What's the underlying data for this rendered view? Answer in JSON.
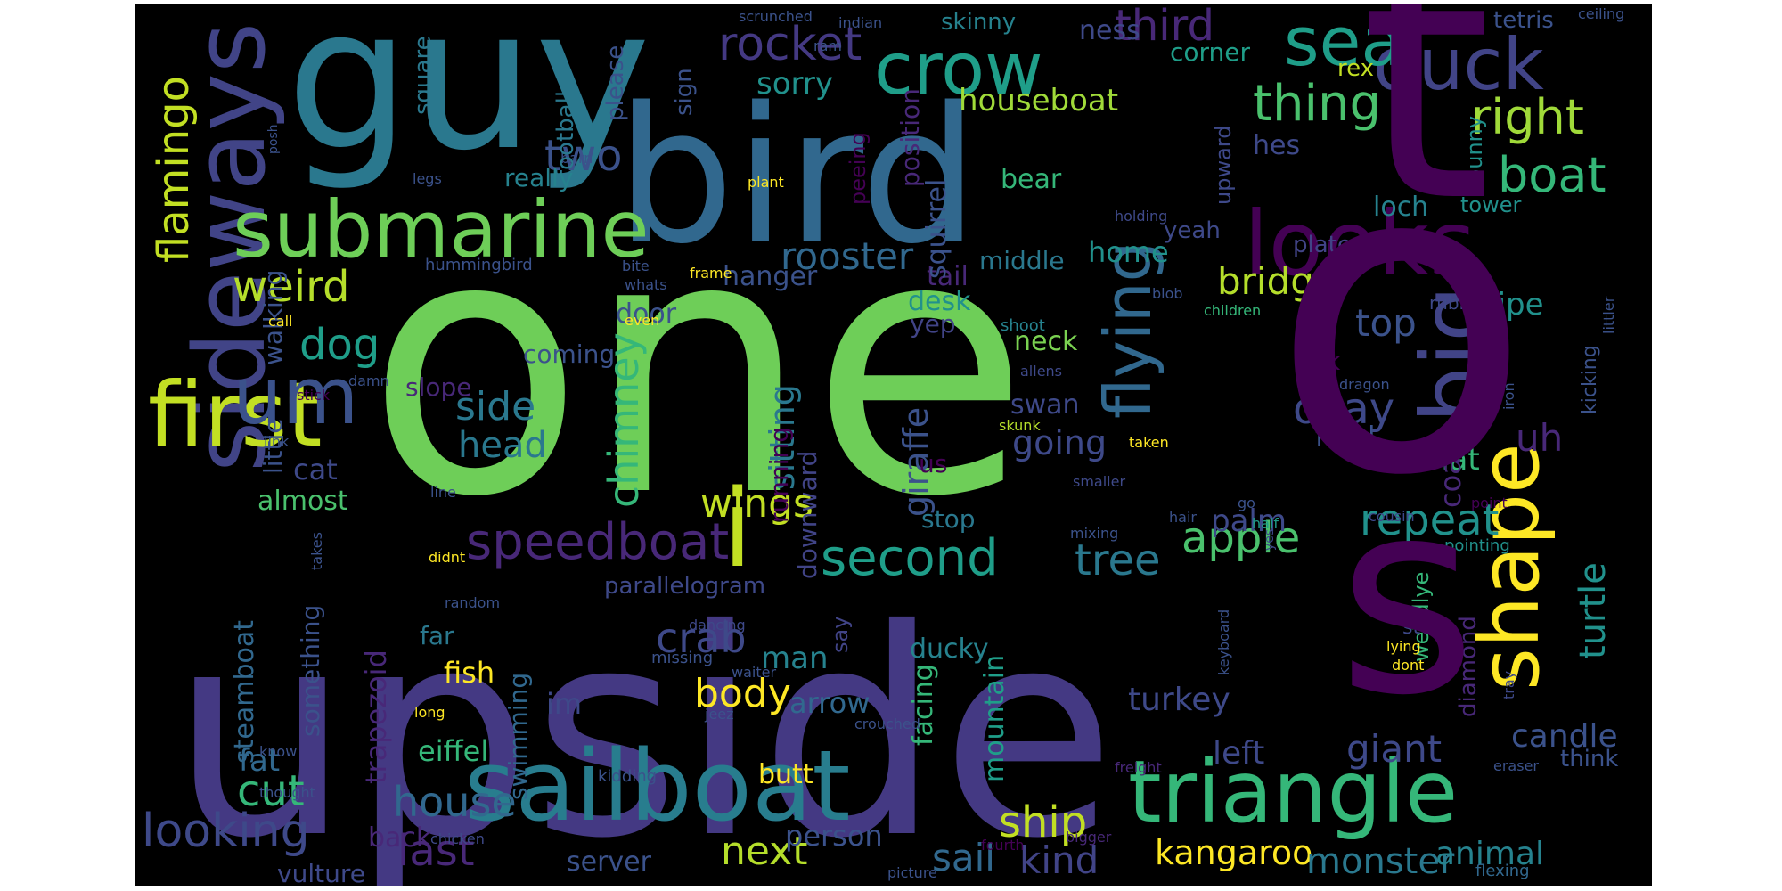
{
  "palette": {
    "background": "#000000",
    "page": "#ffffff",
    "yellow": "#fde725",
    "yellow_green": "#b5de2b",
    "light_green": "#6ece58",
    "green": "#35b779",
    "teal_green": "#1f9e89",
    "teal": "#26828e",
    "blue": "#31688e",
    "indigo": "#3e4989",
    "purple": "#482878",
    "dark_purple": "#440154"
  },
  "words": [
    {
      "text": "one",
      "color": "#6ece58"
    },
    {
      "text": "upside",
      "color": "#443983"
    },
    {
      "text": "guy",
      "color": "#2a788e"
    },
    {
      "text": "bird",
      "color": "#31688e"
    },
    {
      "text": "sideways",
      "color": "#414487"
    },
    {
      "text": "submarine",
      "color": "#6ece58"
    },
    {
      "text": "first",
      "color": "#c2df23"
    },
    {
      "text": "sailboat",
      "color": "#287d8e"
    },
    {
      "text": "triangle",
      "color": "#35b779"
    },
    {
      "text": "looks",
      "color": "#440154"
    },
    {
      "text": "crow",
      "color": "#1f9e89"
    },
    {
      "text": "duck",
      "color": "#414487"
    },
    {
      "text": "seal",
      "color": "#1f9e89"
    },
    {
      "text": "flying",
      "color": "#31688e"
    },
    {
      "text": "big",
      "color": "#414487"
    },
    {
      "text": "shape",
      "color": "#fde725"
    },
    {
      "text": "um",
      "color": "#3b528b"
    },
    {
      "text": "speedboat",
      "color": "#482878"
    },
    {
      "text": "second",
      "color": "#1f9e89"
    },
    {
      "text": "thing",
      "color": "#4ac16d"
    },
    {
      "text": "right",
      "color": "#a0da39"
    },
    {
      "text": "boat",
      "color": "#35b779"
    },
    {
      "text": "rocket",
      "color": "#443983"
    },
    {
      "text": "third",
      "color": "#482878"
    },
    {
      "text": "flamingo",
      "color": "#c2df23"
    },
    {
      "text": "two",
      "color": "#3b528b"
    },
    {
      "text": "weird",
      "color": "#b5de2b"
    },
    {
      "text": "dog",
      "color": "#1f9e89"
    },
    {
      "text": "rooster",
      "color": "#31688e"
    },
    {
      "text": "bridge",
      "color": "#b5de2b"
    },
    {
      "text": "okay",
      "color": "#3e4989"
    },
    {
      "text": "apple",
      "color": "#4ac16d"
    },
    {
      "text": "repeat",
      "color": "#21918c"
    },
    {
      "text": "tree",
      "color": "#2a788e"
    },
    {
      "text": "chimney",
      "color": "#35b779"
    },
    {
      "text": "wings",
      "color": "#c2df23"
    },
    {
      "text": "side",
      "color": "#2a788e"
    },
    {
      "text": "head",
      "color": "#2a788e"
    },
    {
      "text": "crab",
      "color": "#3e4989"
    },
    {
      "text": "cut",
      "color": "#35b779"
    },
    {
      "text": "house",
      "color": "#31688e"
    },
    {
      "text": "ship",
      "color": "#c2df23"
    },
    {
      "text": "last",
      "color": "#482878"
    },
    {
      "text": "looking",
      "color": "#3e4989"
    },
    {
      "text": "body",
      "color": "#fde725"
    },
    {
      "text": "next",
      "color": "#b5de2b"
    },
    {
      "text": "kangaroo",
      "color": "#fde725"
    },
    {
      "text": "monster",
      "color": "#2a788e"
    },
    {
      "text": "sail",
      "color": "#31688e"
    },
    {
      "text": "kind",
      "color": "#414487"
    },
    {
      "text": "animal",
      "color": "#26828e"
    },
    {
      "text": "turkey",
      "color": "#3e4989"
    },
    {
      "text": "giant",
      "color": "#3e4989"
    },
    {
      "text": "left",
      "color": "#3e4989"
    },
    {
      "text": "turtle",
      "color": "#21918c"
    },
    {
      "text": "candle",
      "color": "#3b528b"
    },
    {
      "text": "top",
      "color": "#3b528b"
    },
    {
      "text": "pipe",
      "color": "#21918c"
    },
    {
      "text": "uh",
      "color": "#482878"
    },
    {
      "text": "hat",
      "color": "#35b779"
    },
    {
      "text": "coat",
      "color": "#482878"
    },
    {
      "text": "fetal",
      "color": "#3b528b"
    },
    {
      "text": "ok",
      "color": "#440154"
    },
    {
      "text": "palm",
      "color": "#3e4989"
    },
    {
      "text": "going",
      "color": "#3e4989"
    },
    {
      "text": "giraffe",
      "color": "#3b528b"
    },
    {
      "text": "sitting",
      "color": "#2a788e"
    },
    {
      "text": "running",
      "color": "#440154"
    },
    {
      "text": "downward",
      "color": "#414487"
    },
    {
      "text": "stop",
      "color": "#2a788e"
    },
    {
      "text": "us",
      "color": "#440154"
    },
    {
      "text": "swan",
      "color": "#3e4989"
    },
    {
      "text": "yep",
      "color": "#414487"
    },
    {
      "text": "desk",
      "color": "#21918c"
    },
    {
      "text": "tail",
      "color": "#482878"
    },
    {
      "text": "neck",
      "color": "#7ad151"
    },
    {
      "text": "home",
      "color": "#21918c"
    },
    {
      "text": "middle",
      "color": "#2a788e"
    },
    {
      "text": "bear",
      "color": "#35b779"
    },
    {
      "text": "position",
      "color": "#482878"
    },
    {
      "text": "squirrel",
      "color": "#3b528b"
    },
    {
      "text": "hanger",
      "color": "#3b528b"
    },
    {
      "text": "door",
      "color": "#3b528b"
    },
    {
      "text": "coming",
      "color": "#3b528b"
    },
    {
      "text": "slope",
      "color": "#482878"
    },
    {
      "text": "almost",
      "color": "#4ac16d"
    },
    {
      "text": "cat",
      "color": "#3e4989"
    },
    {
      "text": "houseboat",
      "color": "#a0da39"
    },
    {
      "text": "sorry",
      "color": "#21918c"
    },
    {
      "text": "skinny",
      "color": "#26828e"
    },
    {
      "text": "ness",
      "color": "#3e4989"
    },
    {
      "text": "corner",
      "color": "#1f9e89"
    },
    {
      "text": "rex",
      "color": "#c2df23"
    },
    {
      "text": "tetris",
      "color": "#3b528b"
    },
    {
      "text": "ceiling",
      "color": "#3b528b"
    },
    {
      "text": "hes",
      "color": "#3e4989"
    },
    {
      "text": "loch",
      "color": "#26828e"
    },
    {
      "text": "tower",
      "color": "#21918c"
    },
    {
      "text": "bunny",
      "color": "#21918c"
    },
    {
      "text": "upward",
      "color": "#3e4989"
    },
    {
      "text": "yeah",
      "color": "#3e4989"
    },
    {
      "text": "plate",
      "color": "#414487"
    },
    {
      "text": "holding",
      "color": "#3e4989"
    },
    {
      "text": "camel",
      "color": "#31688e"
    },
    {
      "text": "rubber",
      "color": "#3e4989"
    },
    {
      "text": "kicking",
      "color": "#3b528b"
    },
    {
      "text": "littler",
      "color": "#3b528b"
    },
    {
      "text": "iron",
      "color": "#3b528b"
    },
    {
      "text": "dragon",
      "color": "#3b528b"
    },
    {
      "text": "shoot",
      "color": "#26828e"
    },
    {
      "text": "allens",
      "color": "#3e4989"
    },
    {
      "text": "skunk",
      "color": "#b5de2b"
    },
    {
      "text": "taken",
      "color": "#fde725"
    },
    {
      "text": "smaller",
      "color": "#3e4989"
    },
    {
      "text": "hair",
      "color": "#3b528b"
    },
    {
      "text": "go",
      "color": "#3b528b"
    },
    {
      "text": "half",
      "color": "#1f9e89"
    },
    {
      "text": "point",
      "color": "#440154"
    },
    {
      "text": "cousin",
      "color": "#3e4989"
    },
    {
      "text": "yes",
      "color": "#3e4989"
    },
    {
      "text": "pointing",
      "color": "#21918c"
    },
    {
      "text": "keyboard",
      "color": "#3b528b"
    },
    {
      "text": "weirdlye",
      "color": "#35b779"
    },
    {
      "text": "diamond",
      "color": "#482878"
    },
    {
      "text": "step",
      "color": "#3e4989"
    },
    {
      "text": "lying",
      "color": "#fde725"
    },
    {
      "text": "dont",
      "color": "#fde725"
    },
    {
      "text": "people",
      "color": "#fde725"
    },
    {
      "text": "tray",
      "color": "#3e4989"
    },
    {
      "text": "eraser",
      "color": "#3b528b"
    },
    {
      "text": "think",
      "color": "#3b528b"
    },
    {
      "text": "flexing",
      "color": "#31688e"
    },
    {
      "text": "freight",
      "color": "#482878"
    },
    {
      "text": "bigger",
      "color": "#482878"
    },
    {
      "text": "fourth",
      "color": "#440154"
    },
    {
      "text": "picture",
      "color": "#3b528b"
    },
    {
      "text": "chicken",
      "color": "#3e4989"
    },
    {
      "text": "person",
      "color": "#3b528b"
    },
    {
      "text": "server",
      "color": "#3b528b"
    },
    {
      "text": "butt",
      "color": "#fde725"
    },
    {
      "text": "ducky",
      "color": "#26828e"
    },
    {
      "text": "facing",
      "color": "#35b779"
    },
    {
      "text": "mountain",
      "color": "#1f9e89"
    },
    {
      "text": "arrow",
      "color": "#31688e"
    },
    {
      "text": "man",
      "color": "#26828e"
    },
    {
      "text": "say",
      "color": "#414487"
    },
    {
      "text": "eiffel",
      "color": "#35b779"
    },
    {
      "text": "im",
      "color": "#3e4989"
    },
    {
      "text": "swimming",
      "color": "#31688e"
    },
    {
      "text": "trapezoid",
      "color": "#482878"
    },
    {
      "text": "fish",
      "color": "#fde725"
    },
    {
      "text": "far",
      "color": "#2a788e"
    },
    {
      "text": "something",
      "color": "#3b528b"
    },
    {
      "text": "steamboat",
      "color": "#31688e"
    },
    {
      "text": "fat",
      "color": "#31688e"
    },
    {
      "text": "vulture",
      "color": "#3e4989"
    },
    {
      "text": "back",
      "color": "#482878"
    },
    {
      "text": "parallelogram",
      "color": "#3e4989"
    },
    {
      "text": "dancing",
      "color": "#3e4989"
    },
    {
      "text": "missing",
      "color": "#3b528b"
    },
    {
      "text": "waiter",
      "color": "#3b528b"
    },
    {
      "text": "jeez",
      "color": "#3b528b"
    },
    {
      "text": "crouched",
      "color": "#3b528b"
    },
    {
      "text": "kidding",
      "color": "#3b528b"
    },
    {
      "text": "long",
      "color": "#fde725"
    },
    {
      "text": "random",
      "color": "#3b528b"
    },
    {
      "text": "didnt",
      "color": "#fde725"
    },
    {
      "text": "mixing",
      "color": "#3b528b"
    },
    {
      "text": "takes",
      "color": "#3b528b"
    },
    {
      "text": "little",
      "color": "#3b528b"
    },
    {
      "text": "walking",
      "color": "#3b528b"
    },
    {
      "text": "link",
      "color": "#3b528b"
    },
    {
      "text": "line",
      "color": "#3b528b"
    },
    {
      "text": "stick",
      "color": "#440154"
    },
    {
      "text": "damn",
      "color": "#3b528b"
    },
    {
      "text": "call",
      "color": "#fde725"
    },
    {
      "text": "hummingbird",
      "color": "#3b528b"
    },
    {
      "text": "bite",
      "color": "#3b528b"
    },
    {
      "text": "frame",
      "color": "#fde725"
    },
    {
      "text": "whats",
      "color": "#3b528b"
    },
    {
      "text": "even",
      "color": "#fde725"
    },
    {
      "text": "blob",
      "color": "#3b528b"
    },
    {
      "text": "children",
      "color": "#35b779"
    },
    {
      "text": "know",
      "color": "#3b528b"
    },
    {
      "text": "thought",
      "color": "#3b528b"
    },
    {
      "text": "legs",
      "color": "#3b528b"
    },
    {
      "text": "plant",
      "color": "#fde725"
    },
    {
      "text": "barn",
      "color": "#3b528b"
    },
    {
      "text": "posh",
      "color": "#3b528b"
    },
    {
      "text": "football",
      "color": "#2a788e"
    },
    {
      "text": "please",
      "color": "#3b528b"
    },
    {
      "text": "sign",
      "color": "#3b528b"
    },
    {
      "text": "square",
      "color": "#2a788e"
    },
    {
      "text": "peeing",
      "color": "#440154"
    },
    {
      "text": "really",
      "color": "#26828e"
    },
    {
      "text": "ram",
      "color": "#3b528b"
    },
    {
      "text": "scrunched",
      "color": "#3b528b"
    },
    {
      "text": "indian",
      "color": "#3b528b"
    },
    {
      "text": "o",
      "color": "#440154"
    },
    {
      "text": "t",
      "color": "#440154"
    },
    {
      "text": "s",
      "color": "#440154"
    },
    {
      "text": "i",
      "color": "#c2df23"
    }
  ]
}
